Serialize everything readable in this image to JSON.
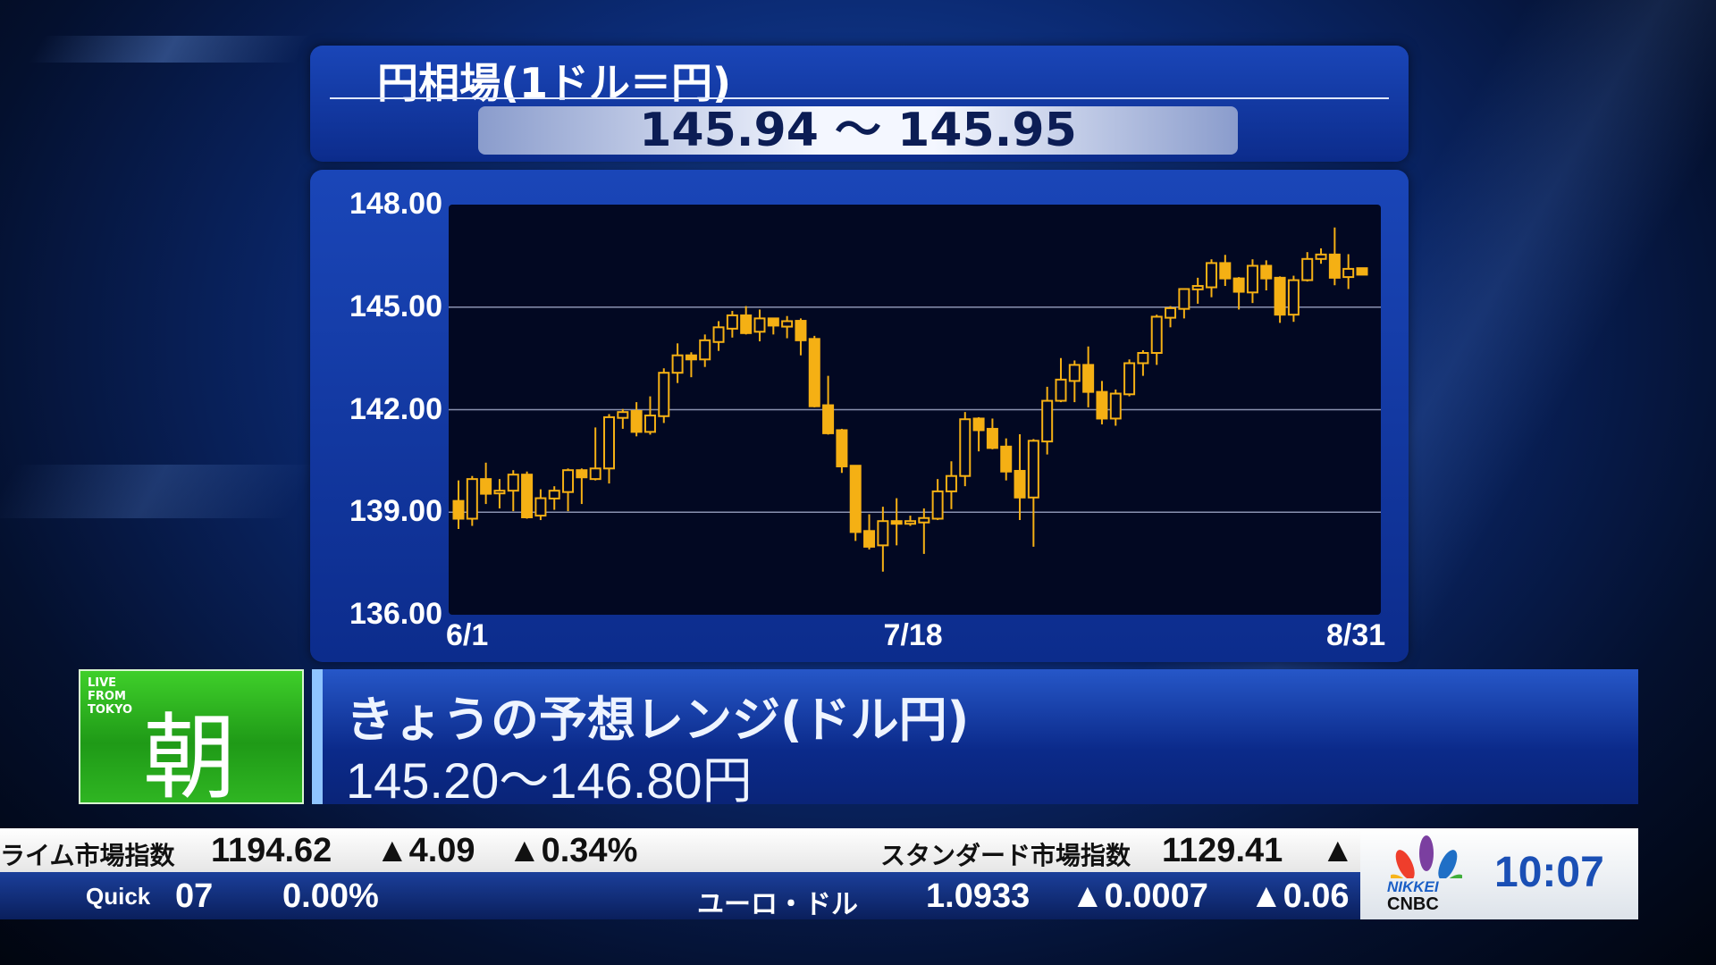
{
  "header": {
    "title": "円相場(1ドル＝円)",
    "price_range": "145.94 ～ 145.95"
  },
  "chart_data": {
    "type": "candlestick",
    "ylim": [
      136,
      148
    ],
    "yticks": [
      "148.00",
      "145.00",
      "142.00",
      "139.00",
      "136.00"
    ],
    "ytick_values": [
      148,
      145,
      142,
      139,
      136
    ],
    "xlabels": [
      {
        "index": 0,
        "label": "6/1"
      },
      {
        "index": 33,
        "label": "7/18"
      },
      {
        "index": 66,
        "label": "8/31"
      }
    ],
    "grid": "horizontal",
    "candle_color": "#f5b014",
    "ohlc": [
      [
        139.33,
        139.93,
        138.51,
        138.81
      ],
      [
        138.81,
        140.06,
        138.6,
        139.97
      ],
      [
        139.97,
        140.45,
        139.24,
        139.54
      ],
      [
        139.55,
        139.97,
        139.11,
        139.63
      ],
      [
        139.63,
        140.23,
        139.03,
        140.1
      ],
      [
        140.1,
        140.19,
        138.81,
        138.85
      ],
      [
        138.9,
        139.67,
        138.77,
        139.41
      ],
      [
        139.4,
        139.76,
        139.07,
        139.63
      ],
      [
        139.59,
        140.28,
        139.03,
        140.23
      ],
      [
        140.23,
        140.28,
        139.24,
        140.02
      ],
      [
        139.97,
        141.48,
        139.93,
        140.28
      ],
      [
        140.28,
        141.87,
        139.84,
        141.78
      ],
      [
        141.76,
        142.02,
        141.44,
        141.93
      ],
      [
        141.96,
        142.22,
        141.22,
        141.35
      ],
      [
        141.35,
        142.39,
        141.27,
        141.83
      ],
      [
        141.81,
        143.21,
        141.61,
        143.08
      ],
      [
        143.08,
        143.94,
        142.78,
        143.59
      ],
      [
        143.59,
        143.68,
        142.95,
        143.47
      ],
      [
        143.47,
        144.2,
        143.25,
        144.03
      ],
      [
        143.98,
        144.59,
        143.72,
        144.41
      ],
      [
        144.37,
        144.89,
        144.11,
        144.76
      ],
      [
        144.76,
        145.03,
        144.2,
        144.24
      ],
      [
        144.28,
        144.93,
        144.0,
        144.67
      ],
      [
        144.67,
        144.67,
        144.2,
        144.46
      ],
      [
        144.43,
        144.74,
        144.09,
        144.59
      ],
      [
        144.6,
        144.67,
        143.59,
        144.03
      ],
      [
        144.07,
        144.16,
        142.07,
        142.1
      ],
      [
        142.13,
        142.99,
        141.27,
        141.31
      ],
      [
        141.4,
        141.44,
        140.15,
        140.34
      ],
      [
        140.36,
        140.36,
        138.16,
        138.42
      ],
      [
        138.45,
        138.94,
        137.91,
        137.99
      ],
      [
        138.03,
        139.16,
        137.26,
        138.74
      ],
      [
        138.74,
        139.41,
        138.03,
        138.72
      ],
      [
        138.72,
        138.9,
        138.6,
        138.74
      ],
      [
        138.7,
        139.11,
        137.78,
        138.83
      ],
      [
        138.81,
        139.97,
        138.77,
        139.61
      ],
      [
        139.61,
        140.49,
        139.09,
        140.06
      ],
      [
        140.06,
        141.93,
        139.76,
        141.72
      ],
      [
        141.74,
        141.78,
        140.78,
        141.4
      ],
      [
        141.44,
        141.74,
        140.84,
        140.88
      ],
      [
        140.92,
        141.16,
        139.93,
        140.19
      ],
      [
        140.21,
        141.28,
        138.77,
        139.43
      ],
      [
        139.43,
        141.14,
        137.99,
        141.09
      ],
      [
        141.07,
        142.67,
        140.69,
        142.26
      ],
      [
        142.26,
        143.51,
        142.22,
        142.88
      ],
      [
        142.84,
        143.44,
        142.22,
        143.31
      ],
      [
        143.31,
        143.85,
        142.07,
        142.52
      ],
      [
        142.52,
        142.84,
        141.57,
        141.74
      ],
      [
        141.74,
        142.59,
        141.53,
        142.47
      ],
      [
        142.45,
        143.47,
        142.39,
        143.36
      ],
      [
        143.36,
        143.74,
        142.99,
        143.66
      ],
      [
        143.66,
        144.78,
        143.31,
        144.72
      ],
      [
        144.69,
        145.03,
        144.41,
        144.97
      ],
      [
        144.95,
        145.55,
        144.67,
        145.53
      ],
      [
        145.52,
        145.86,
        145.1,
        145.62
      ],
      [
        145.58,
        146.4,
        145.29,
        146.29
      ],
      [
        146.29,
        146.53,
        145.62,
        145.84
      ],
      [
        145.84,
        145.88,
        144.93,
        145.45
      ],
      [
        145.43,
        146.4,
        145.12,
        146.21
      ],
      [
        146.21,
        146.37,
        145.49,
        145.84
      ],
      [
        145.86,
        145.9,
        144.54,
        144.78
      ],
      [
        144.78,
        145.92,
        144.57,
        145.79
      ],
      [
        145.79,
        146.61,
        145.75,
        146.41
      ],
      [
        146.41,
        146.72,
        146.27,
        146.54
      ],
      [
        146.54,
        147.33,
        145.64,
        145.86
      ],
      [
        145.88,
        146.55,
        145.53,
        146.12
      ],
      [
        146.14,
        146.14,
        145.95,
        145.95
      ]
    ]
  },
  "badge": {
    "live": "LIVE FROM TOKYO",
    "kanji": "朝"
  },
  "banner": {
    "title": "きょうの予想レンジ(ドル円)",
    "range": "145.20～146.80円"
  },
  "ticker": {
    "row1": {
      "name1": "ライム市場指数",
      "value1": "1194.62",
      "chg1": "▲4.09",
      "pct1": "▲0.34%",
      "name2": "スタンダード市場指数",
      "value2": "1129.41",
      "chg2": "▲"
    },
    "row2": {
      "source": "Quick",
      "value1": "07",
      "pct1": "0.00%",
      "name2": "ユーロ・ドル",
      "value2": "1.0933",
      "chg2": "▲0.0007",
      "pct2": "▲0.06"
    }
  },
  "logo": {
    "nikkei": "NIKKEI",
    "cnbc": "CNBC",
    "time": "10:07"
  }
}
